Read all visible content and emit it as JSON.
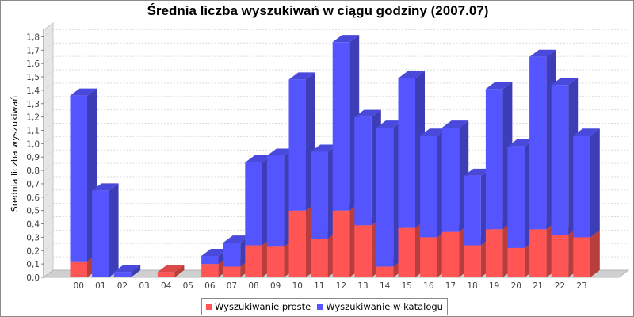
{
  "chart_data": {
    "type": "bar",
    "stacked": true,
    "style": "3d",
    "title": "Średnia liczba wyszukiwań w ciągu godziny (2007.07)",
    "xlabel": "",
    "ylabel": "Średnia liczba wyszukiwań",
    "ylim": [
      0,
      1.85
    ],
    "yticks": [
      "0,0",
      "0,1",
      "0,2",
      "0,3",
      "0,4",
      "0,5",
      "0,6",
      "0,7",
      "0,8",
      "0,9",
      "1,0",
      "1,1",
      "1,2",
      "1,3",
      "1,4",
      "1,5",
      "1,6",
      "1,7",
      "1,8"
    ],
    "grid": true,
    "legend_position": "bottom",
    "categories": [
      "00",
      "01",
      "02",
      "03",
      "04",
      "05",
      "06",
      "07",
      "08",
      "09",
      "10",
      "11",
      "12",
      "13",
      "14",
      "15",
      "16",
      "17",
      "18",
      "19",
      "20",
      "21",
      "22",
      "23"
    ],
    "series": [
      {
        "name": "Wyszukiwanie proste",
        "color": "#ff5555",
        "values": [
          0.12,
          0.0,
          0.0,
          0.0,
          0.04,
          0.0,
          0.1,
          0.08,
          0.24,
          0.23,
          0.5,
          0.29,
          0.5,
          0.39,
          0.08,
          0.37,
          0.3,
          0.34,
          0.24,
          0.36,
          0.22,
          0.36,
          0.32,
          0.3
        ]
      },
      {
        "name": "Wyszukiwanie w katalogu",
        "color": "#5555ff",
        "values": [
          1.24,
          0.65,
          0.04,
          0.0,
          0.0,
          0.0,
          0.06,
          0.18,
          0.62,
          0.68,
          0.98,
          0.65,
          1.26,
          0.81,
          1.04,
          1.12,
          0.76,
          0.78,
          0.52,
          1.05,
          0.76,
          1.29,
          1.12,
          0.76
        ]
      }
    ]
  }
}
